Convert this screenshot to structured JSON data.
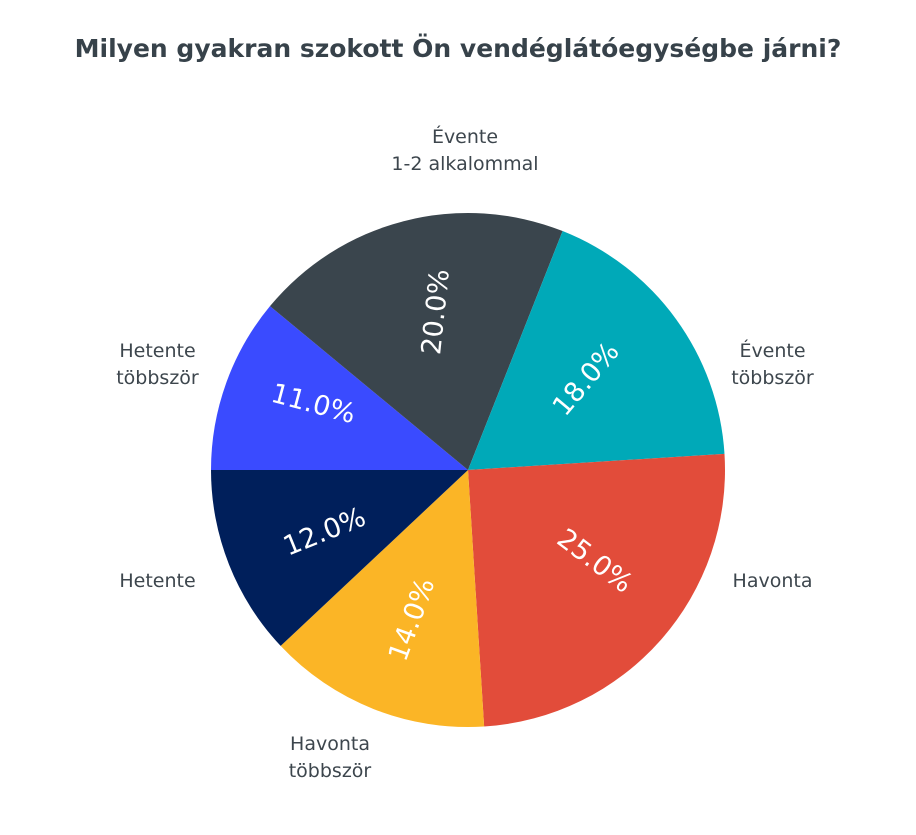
{
  "title": "Milyen gyakran szokott Ön vendéglátóegységbe járni?",
  "chart_data": {
    "type": "pie",
    "title": "Milyen gyakran szokott Ön vendéglátóegységbe járni?",
    "categories": [
      "Hetente többször",
      "Évente 1-2 alkalommal",
      "Évente többször",
      "Havonta",
      "Havonta többször",
      "Hetente"
    ],
    "values": [
      11.0,
      20.0,
      18.0,
      25.0,
      14.0,
      12.0
    ],
    "labels": [
      "11.0%",
      "20.0%",
      "18.0%",
      "25.0%",
      "14.0%",
      "12.0%"
    ],
    "colors": [
      "#3a4bff",
      "#3a454d",
      "#00a9b8",
      "#e24c3a",
      "#fbb526",
      "#001f5b"
    ]
  },
  "outer_labels": {
    "hetente_tobbszor": "Hetente\ntöbbször",
    "evente_1_2": "Évente\n1-2 alkalommal",
    "evente_tobbszor": "Évente\ntöbbször",
    "havonta": "Havonta",
    "havonta_tobbszor": "Havonta\ntöbbször",
    "hetente": "Hetente"
  },
  "slice_labels": {
    "s0": "11.0%",
    "s1": "20.0%",
    "s2": "18.0%",
    "s3": "25.0%",
    "s4": "14.0%",
    "s5": "12.0%"
  }
}
